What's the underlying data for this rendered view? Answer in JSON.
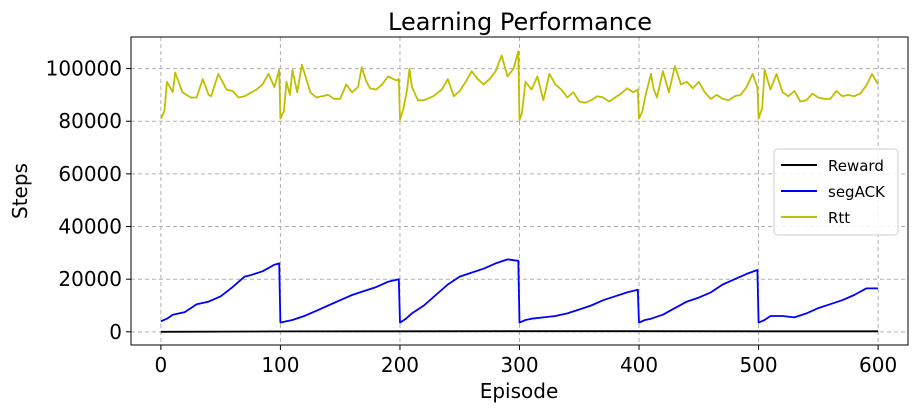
{
  "chart_data": {
    "type": "line",
    "title": "Learning Performance",
    "xlabel": "Episode",
    "ylabel": "Steps",
    "xlim": [
      -25,
      625
    ],
    "ylim": [
      -5000,
      112000
    ],
    "xticks": [
      0,
      100,
      200,
      300,
      400,
      500,
      600
    ],
    "yticks": [
      0,
      20000,
      40000,
      60000,
      80000,
      100000
    ],
    "xtick_labels": [
      "0",
      "100",
      "200",
      "300",
      "400",
      "500",
      "600"
    ],
    "ytick_labels": [
      "0",
      "20000",
      "40000",
      "60000",
      "80000",
      "100000"
    ],
    "grid": true,
    "legend_position": "center-right",
    "series": [
      {
        "name": "Reward",
        "color": "#000000",
        "x": [
          0,
          100,
          200,
          300,
          400,
          500,
          600
        ],
        "y": [
          0,
          150,
          200,
          250,
          250,
          200,
          200
        ]
      },
      {
        "name": "segACK",
        "color": "#0000ff",
        "x": [
          0,
          5,
          10,
          20,
          30,
          40,
          50,
          60,
          70,
          75,
          85,
          95,
          99,
          100,
          105,
          110,
          120,
          130,
          140,
          150,
          160,
          170,
          180,
          190,
          199,
          200,
          205,
          210,
          220,
          230,
          240,
          250,
          260,
          270,
          280,
          290,
          299,
          300,
          305,
          310,
          320,
          330,
          340,
          350,
          360,
          370,
          380,
          390,
          399,
          400,
          405,
          410,
          420,
          430,
          440,
          450,
          460,
          470,
          480,
          490,
          499,
          500,
          505,
          510,
          520,
          530,
          540,
          550,
          560,
          570,
          580,
          590,
          600
        ],
        "y": [
          4000,
          5000,
          6500,
          7500,
          10500,
          11500,
          13500,
          17000,
          21000,
          21500,
          23000,
          25500,
          26000,
          3500,
          4000,
          4500,
          6000,
          8000,
          10000,
          12000,
          14000,
          15500,
          17000,
          19000,
          20000,
          3500,
          5000,
          7000,
          10000,
          14000,
          18000,
          21000,
          22500,
          24000,
          26000,
          27500,
          27000,
          3500,
          4500,
          5000,
          5500,
          6000,
          7000,
          8500,
          10000,
          12000,
          13500,
          15000,
          16000,
          3500,
          4500,
          5000,
          6500,
          9000,
          11500,
          13000,
          15000,
          18000,
          20000,
          22000,
          23500,
          3500,
          4500,
          6000,
          6000,
          5500,
          7000,
          9000,
          10500,
          12000,
          14000,
          16500,
          16500
        ]
      },
      {
        "name": "Rtt",
        "color": "#bfbf00",
        "x": [
          0,
          3,
          5,
          10,
          12,
          18,
          25,
          30,
          35,
          40,
          42,
          48,
          55,
          60,
          65,
          70,
          80,
          85,
          90,
          95,
          99,
          100,
          103,
          105,
          108,
          110,
          114,
          118,
          125,
          130,
          140,
          145,
          150,
          155,
          160,
          165,
          168,
          172,
          175,
          180,
          185,
          190,
          197,
          199,
          200,
          203,
          206,
          208,
          210,
          215,
          220,
          228,
          235,
          240,
          245,
          250,
          255,
          260,
          265,
          270,
          275,
          280,
          285,
          290,
          295,
          299,
          300,
          302,
          305,
          310,
          315,
          320,
          325,
          330,
          335,
          340,
          345,
          350,
          355,
          360,
          365,
          370,
          375,
          380,
          385,
          390,
          395,
          399,
          400,
          403,
          405,
          410,
          412,
          415,
          420,
          425,
          430,
          435,
          440,
          445,
          450,
          455,
          460,
          465,
          470,
          475,
          480,
          485,
          490,
          495,
          499,
          500,
          503,
          505,
          510,
          515,
          520,
          525,
          530,
          535,
          540,
          545,
          550,
          555,
          560,
          565,
          570,
          575,
          580,
          585,
          590,
          595,
          600
        ],
        "y": [
          81000,
          84000,
          95000,
          91000,
          98500,
          91000,
          89000,
          89000,
          96000,
          90000,
          89500,
          98000,
          92000,
          91500,
          89000,
          89500,
          92000,
          94000,
          98000,
          93000,
          99500,
          81000,
          84000,
          95000,
          90000,
          99500,
          91000,
          101500,
          91000,
          89000,
          90000,
          88500,
          88500,
          94000,
          91000,
          93000,
          100500,
          95000,
          92500,
          92000,
          94000,
          97000,
          95500,
          96000,
          80500,
          85000,
          92000,
          100000,
          93000,
          88000,
          88000,
          89500,
          92000,
          96000,
          89500,
          91500,
          95000,
          99000,
          96000,
          94000,
          96000,
          99000,
          105000,
          97000,
          100000,
          106500,
          80500,
          83000,
          95000,
          92000,
          97000,
          88000,
          98000,
          94000,
          92000,
          89000,
          91000,
          87500,
          87000,
          88000,
          89500,
          89000,
          87500,
          89000,
          90500,
          92500,
          91000,
          92000,
          81000,
          84000,
          89000,
          98000,
          92500,
          89000,
          99000,
          91000,
          101000,
          94000,
          95000,
          92500,
          95000,
          91000,
          88500,
          90000,
          88500,
          88000,
          89500,
          90000,
          93000,
          98000,
          93000,
          81000,
          85000,
          99500,
          92000,
          98000,
          91000,
          89500,
          91500,
          87500,
          88000,
          90500,
          89000,
          88500,
          88500,
          91500,
          89500,
          90000,
          89500,
          90500,
          93500,
          98000,
          94000
        ]
      }
    ]
  }
}
